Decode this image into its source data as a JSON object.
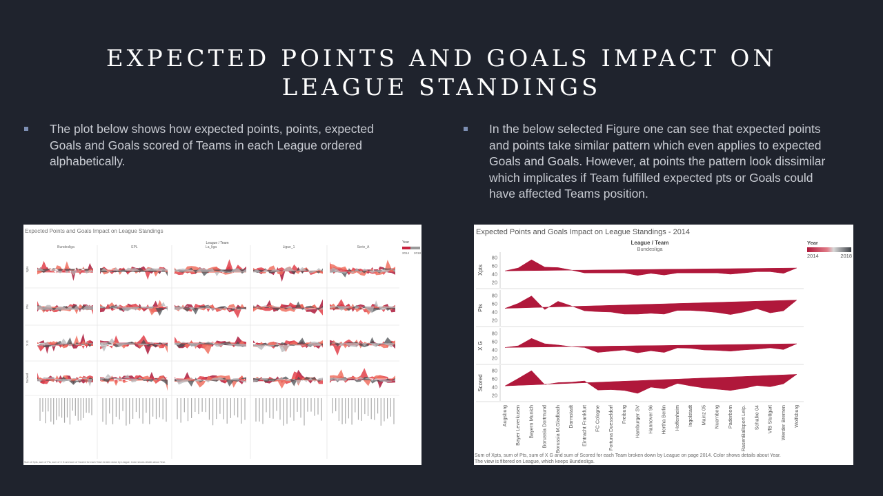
{
  "slide": {
    "title_line1": "EXPECTED POINTS AND GOALS IMPACT ON",
    "title_line2": "LEAGUE STANDINGS",
    "bullet1": "The plot below shows how expected points, points, expected Goals and Goals scored of Teams in each League ordered alphabetically.",
    "bullet2": "In the below selected Figure one can see that expected points and points take similar pattern which even applies to expected Goals and Goals. However, at points the pattern look dissimilar which implicates if Team fulfilled expected pts or Goals could have affected Teams position."
  },
  "left_chart": {
    "title": "Expected Points and Goals Impact on League Standings",
    "header": "League / Team",
    "leagues": [
      "Bundesliga",
      "EPL",
      "La_liga",
      "Ligue_1",
      "Serie_A"
    ],
    "rows": [
      "Xpts",
      "Pts",
      "X G",
      "Scored"
    ],
    "legend_title": "Year",
    "legend_min": "2014",
    "legend_max": "2018",
    "footer": "Sum of Xpts, sum of Pts, sum of X G and sum of Scored for each Team broken down by League. Color shows details about Year.",
    "colors": [
      "#ad1a3b",
      "#e23f4a",
      "#f07060",
      "#4a4d52",
      "#b5b6b8"
    ]
  },
  "chart_data": {
    "type": "area",
    "title": "Expected Points and Goals Impact on League Standings - 2014",
    "header": "League / Team",
    "league": "Bundesliga",
    "legend_title": "Year",
    "legend_min": "2014",
    "legend_max": "2018",
    "color": "#b0183b",
    "categories": [
      "Augsburg",
      "Bayer Leverkusen",
      "Bayern Munich",
      "Borussia Dortmund",
      "Borussia M.Gladbach",
      "Darmstadt",
      "Eintracht Frankfurt",
      "FC Cologne",
      "Fortuna Duesseldorf",
      "Freiburg",
      "Hamburger SV",
      "Hannover 96",
      "Hertha Berlin",
      "Hoffenheim",
      "Ingolstadt",
      "Mainz 05",
      "Nuernberg",
      "Paderborn",
      "RasenBallsport Leip.",
      "Schalke 04",
      "VfB Stuttgart",
      "Werder Bremen",
      "Wolfsburg"
    ],
    "series": [
      {
        "name": "Xpts",
        "ticks": [
          20,
          40,
          60,
          80
        ],
        "ylim": [
          10,
          90
        ],
        "values": [
          48,
          55,
          75,
          57,
          56,
          50,
          43,
          43,
          43,
          43,
          37,
          42,
          38,
          43,
          43,
          43,
          43,
          40,
          43,
          46,
          46,
          42,
          55
        ]
      },
      {
        "name": "Pts",
        "ticks": [
          20,
          40,
          60,
          80
        ],
        "ylim": [
          10,
          90
        ],
        "values": [
          49,
          61,
          79,
          46,
          66,
          55,
          43,
          41,
          40,
          35,
          35,
          37,
          35,
          44,
          44,
          42,
          39,
          34,
          40,
          48,
          38,
          43,
          69
        ]
      },
      {
        "name": "X G",
        "ticks": [
          20,
          40,
          60,
          80
        ],
        "ylim": [
          10,
          90
        ],
        "values": [
          46,
          50,
          68,
          55,
          52,
          48,
          46,
          34,
          37,
          40,
          33,
          38,
          34,
          45,
          44,
          40,
          39,
          37,
          40,
          42,
          45,
          41,
          55
        ]
      },
      {
        "name": "Scored",
        "ticks": [
          20,
          40,
          60,
          80
        ],
        "ylim": [
          10,
          90
        ],
        "values": [
          43,
          61,
          80,
          46,
          51,
          52,
          55,
          33,
          34,
          32,
          25,
          40,
          36,
          49,
          43,
          38,
          35,
          32,
          37,
          44,
          41,
          48,
          71
        ]
      }
    ],
    "footer_line1": "Sum of Xpts, sum of Pts, sum of X G and sum of Scored for each Team broken down by League on page 2014.  Color shows details about Year.",
    "footer_line2": "The view is filtered on League, which keeps Bundesliga."
  }
}
